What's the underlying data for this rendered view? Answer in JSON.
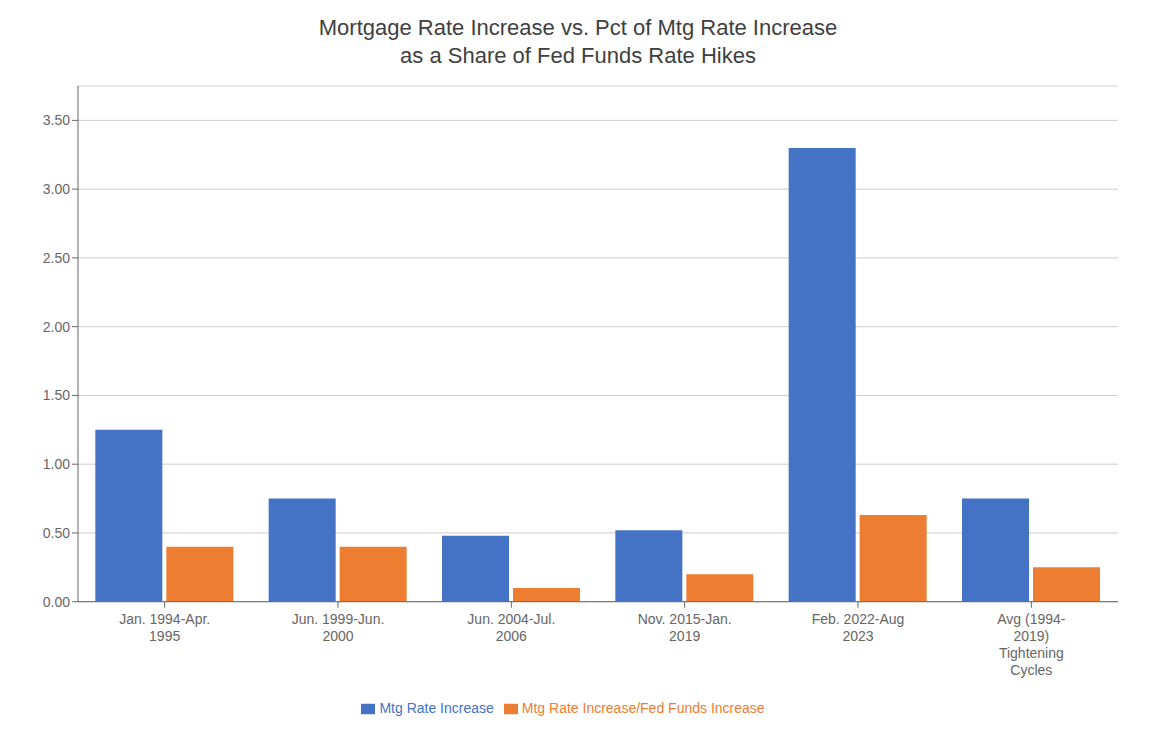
{
  "chart_data": {
    "type": "bar",
    "title": "Mortgage Rate Increase vs. Pct of Mtg Rate Increase\nas a Share of Fed Funds Rate Hikes",
    "categories": [
      "Jan. 1994-Apr.\n1995",
      "Jun. 1999-Jun.\n2000",
      "Jun. 2004-Jul.\n2006",
      "Nov. 2015-Jan.\n2019",
      "Feb. 2022-Aug\n2023",
      "Avg (1994-\n2019)\nTightening\nCycles"
    ],
    "series": [
      {
        "name": "Mtg Rate Increase",
        "color": "#4472C4",
        "values": [
          1.25,
          0.75,
          0.48,
          0.52,
          3.3,
          0.75
        ]
      },
      {
        "name": "Mtg Rate Increase/Fed Funds Increase",
        "color": "#ED7D31",
        "values": [
          0.4,
          0.4,
          0.1,
          0.2,
          0.63,
          0.25
        ]
      }
    ],
    "ylim": [
      0,
      3.75
    ],
    "yticks": [
      {
        "value": 0,
        "label": "0.00"
      },
      {
        "value": 0.5,
        "label": "0.50"
      },
      {
        "value": 1,
        "label": "1.00"
      },
      {
        "value": 1.5,
        "label": "1.50"
      },
      {
        "value": 2,
        "label": "2.00"
      },
      {
        "value": 2.5,
        "label": "2.50"
      },
      {
        "value": 3,
        "label": "3.00"
      },
      {
        "value": 3.5,
        "label": "3.50"
      }
    ],
    "grid": true,
    "legend": "bottom"
  }
}
